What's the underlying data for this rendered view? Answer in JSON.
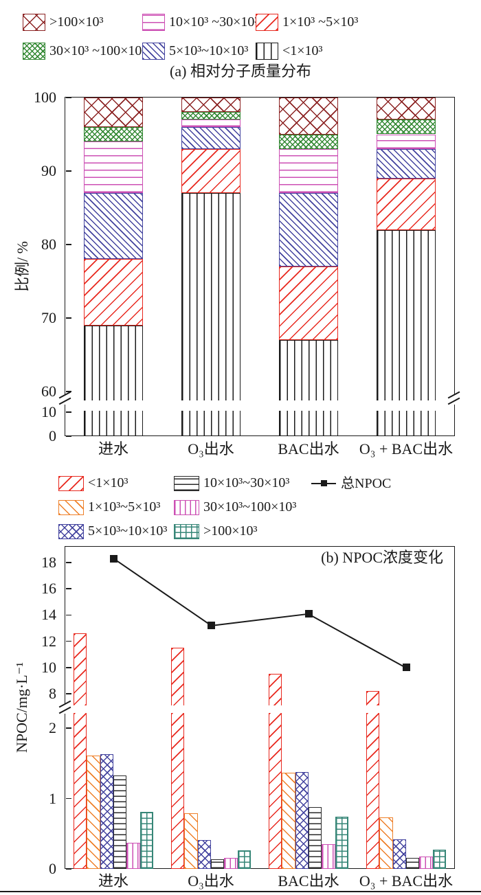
{
  "chart_data": [
    {
      "type": "bar",
      "subtype": "stacked-percent",
      "title": "(a) 相对分子质量分布",
      "ylabel": "比例/ %",
      "categories": [
        "进水",
        "O₃出水",
        "BAC出水",
        "O₃ + BAC出水"
      ],
      "axis_break": {
        "lower_range": [
          0,
          10
        ],
        "upper_range": [
          60,
          100
        ]
      },
      "y_ticks_upper": [
        100,
        90,
        80,
        70,
        60
      ],
      "y_ticks_lower": [
        10,
        0
      ],
      "grid": false,
      "legend_position": "above-chart",
      "series": [
        {
          "name": "<1×10³",
          "color": "#1a1a1a",
          "hatch": "vertical",
          "spacing": 10.5,
          "values": [
            69,
            87,
            67,
            82
          ]
        },
        {
          "name": "1×10³ ~5×10³",
          "color": "#e8281e",
          "hatch": "diagonal-up",
          "spacing": 12,
          "values": [
            9,
            6,
            10,
            7
          ]
        },
        {
          "name": "5×10³~10×10³",
          "color": "#42429e",
          "hatch": "diagonal-down",
          "spacing": 6.5,
          "values": [
            9,
            3,
            10,
            4
          ]
        },
        {
          "name": "10×10³ ~30×10³",
          "color": "#cc4fb4",
          "hatch": "horizontal",
          "spacing": 10.5,
          "values": [
            7,
            1,
            6,
            2
          ]
        },
        {
          "name": "30×10³ ~100×10³",
          "color": "#338833",
          "hatch": "crosshatch",
          "spacing": 5.5,
          "values": [
            2,
            1,
            2,
            2
          ]
        },
        {
          "name": ">100×10³",
          "color": "#8b2222",
          "hatch": "crosshatch",
          "spacing": 14,
          "values": [
            4,
            2,
            5,
            3
          ]
        }
      ],
      "legend_display_order": [
        5,
        3,
        1,
        4,
        2,
        0
      ]
    },
    {
      "type": "bar+line",
      "subtype": "grouped",
      "title": "(b) NPOC浓度变化",
      "ylabel": "NPOC/mg·L⁻¹",
      "categories": [
        "进水",
        "O₃出水",
        "BAC出水",
        "O₃ + BAC出水"
      ],
      "axis_break": {
        "lower_range": [
          0,
          2.2
        ],
        "upper_range": [
          7.3,
          19.2
        ]
      },
      "y_ticks_upper": [
        18,
        16,
        14,
        12,
        10,
        8
      ],
      "y_ticks_lower": [
        2,
        1,
        0
      ],
      "grid": false,
      "legend_position": "above-chart",
      "series": [
        {
          "name": "<1×10³",
          "color": "#e8281e",
          "hatch": "diagonal-up",
          "spacing": 12,
          "values": [
            12.6,
            11.5,
            9.5,
            8.2
          ]
        },
        {
          "name": "1×10³~5×10³",
          "color": "#ee7f28",
          "hatch": "diagonal-down",
          "spacing": 10,
          "values": [
            1.61,
            0.79,
            1.37,
            0.73
          ]
        },
        {
          "name": "5×10³~10×10³",
          "color": "#42429e",
          "hatch": "crosshatch",
          "spacing": 8,
          "values": [
            1.63,
            0.41,
            1.38,
            0.42
          ]
        },
        {
          "name": "10×10³~30×10³",
          "color": "#2a2a2a",
          "hatch": "horizontal",
          "spacing": 8,
          "values": [
            1.33,
            0.14,
            0.88,
            0.16
          ]
        },
        {
          "name": "30×10³~100×10³",
          "color": "#cc4fb4",
          "hatch": "vertical",
          "spacing": 7.5,
          "values": [
            0.37,
            0.16,
            0.35,
            0.18
          ]
        },
        {
          "name": ">100×10³",
          "color": "#368677",
          "hatch": "grid",
          "spacing": 8,
          "values": [
            0.81,
            0.26,
            0.74,
            0.27
          ]
        }
      ],
      "line_series": {
        "name": "总NPOC",
        "color": "#1a1a1a",
        "marker": "square",
        "values": [
          18.3,
          13.2,
          14.1,
          10.0
        ]
      },
      "legend_display_order": [
        0,
        3,
        "line",
        1,
        4,
        2,
        5
      ]
    }
  ]
}
